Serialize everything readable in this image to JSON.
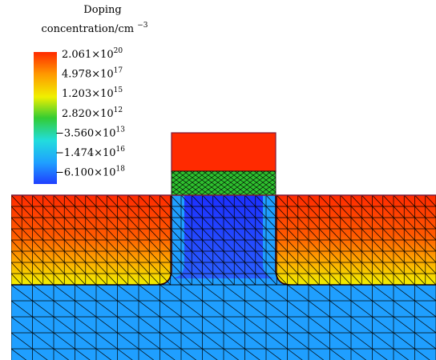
{
  "legend": {
    "title_line1": "Doping",
    "title_line2_base": "concentration/cm",
    "title_line2_exp": "−3",
    "colors": [
      "#1f3fff",
      "#1f9fff",
      "#22dddd",
      "#33cc33",
      "#f0f000",
      "#ff9a00",
      "#ff2a00"
    ],
    "labels": [
      {
        "mantissa": "2.061",
        "exponent": "20"
      },
      {
        "mantissa": "4.978",
        "exponent": "17"
      },
      {
        "mantissa": "1.203",
        "exponent": "15"
      },
      {
        "mantissa": "2.820",
        "exponent": "12"
      },
      {
        "mantissa": "−3.560",
        "exponent": "13"
      },
      {
        "mantissa": "−1.474",
        "exponent": "16"
      },
      {
        "mantissa": "−6.100",
        "exponent": "18"
      }
    ]
  },
  "device_colors": {
    "gate_top": "#ff2a00",
    "gate_mesh": "#2ec02e",
    "source_drain_top": "#ff2a00",
    "source_drain_bottom": "#f0f000",
    "channel": "#2244ff",
    "substrate": "#1f9fff",
    "mesh_line": "#000000",
    "outline": "#7a1a3a"
  }
}
